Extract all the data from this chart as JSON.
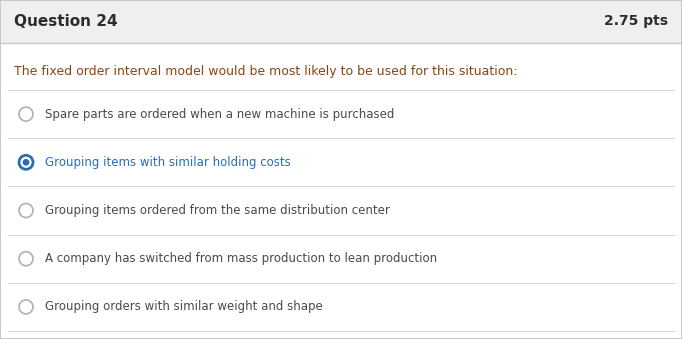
{
  "header_text": "Question 24",
  "pts_text": "2.75 pts",
  "header_bg": "#efefef",
  "header_text_color": "#2c2c2c",
  "border_color": "#c8c8c8",
  "body_bg": "#ffffff",
  "question_text": "The fixed order interval model would be most likely to be used for this situation:",
  "question_color": "#8b4513",
  "options": [
    "Spare parts are ordered when a new machine is purchased",
    "Grouping items with similar holding costs",
    "Grouping items ordered from the same distribution center",
    "A company has switched from mass production to lean production",
    "Grouping orders with similar weight and shape"
  ],
  "option_text_color": "#4a4a4a",
  "selected_option": 1,
  "selected_text_color": "#2a6db5",
  "radio_unselected_edge": "#b0b0b0",
  "radio_selected_outer": "#2a6db5",
  "radio_selected_inner": "#2a6db5",
  "divider_color": "#d8d8d8",
  "fig_width": 6.82,
  "fig_height": 3.39,
  "dpi": 100
}
